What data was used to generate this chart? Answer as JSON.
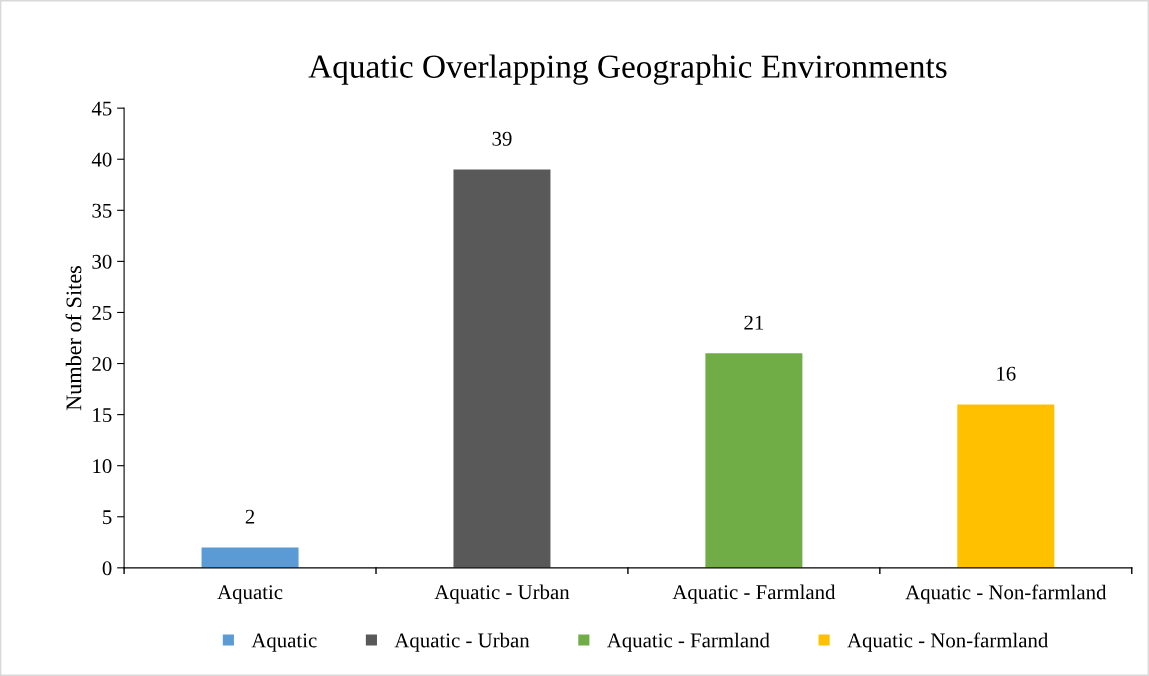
{
  "chart_data": {
    "type": "bar",
    "title": "Aquatic Overlapping Geographic Environments",
    "ylabel": "Number of Sites",
    "categories": [
      "Aquatic",
      "Aquatic - Urban",
      "Aquatic - Farmland",
      "Aquatic - Non-farmland"
    ],
    "series": [
      {
        "name": "Aquatic",
        "color": "#5b9bd5",
        "values": [
          2,
          null,
          null,
          null
        ]
      },
      {
        "name": "Aquatic - Urban",
        "color": "#595959",
        "values": [
          null,
          39,
          null,
          null
        ]
      },
      {
        "name": "Aquatic - Farmland",
        "color": "#70ad47",
        "values": [
          null,
          null,
          21,
          null
        ]
      },
      {
        "name": "Aquatic - Non-farmland",
        "color": "#ffc000",
        "values": [
          null,
          null,
          null,
          16
        ]
      }
    ],
    "ylim": [
      0,
      45
    ],
    "yticks": [
      0,
      5,
      10,
      15,
      20,
      25,
      30,
      35,
      40,
      45
    ],
    "grid": false,
    "legend": "bottom",
    "data_labels": true
  }
}
